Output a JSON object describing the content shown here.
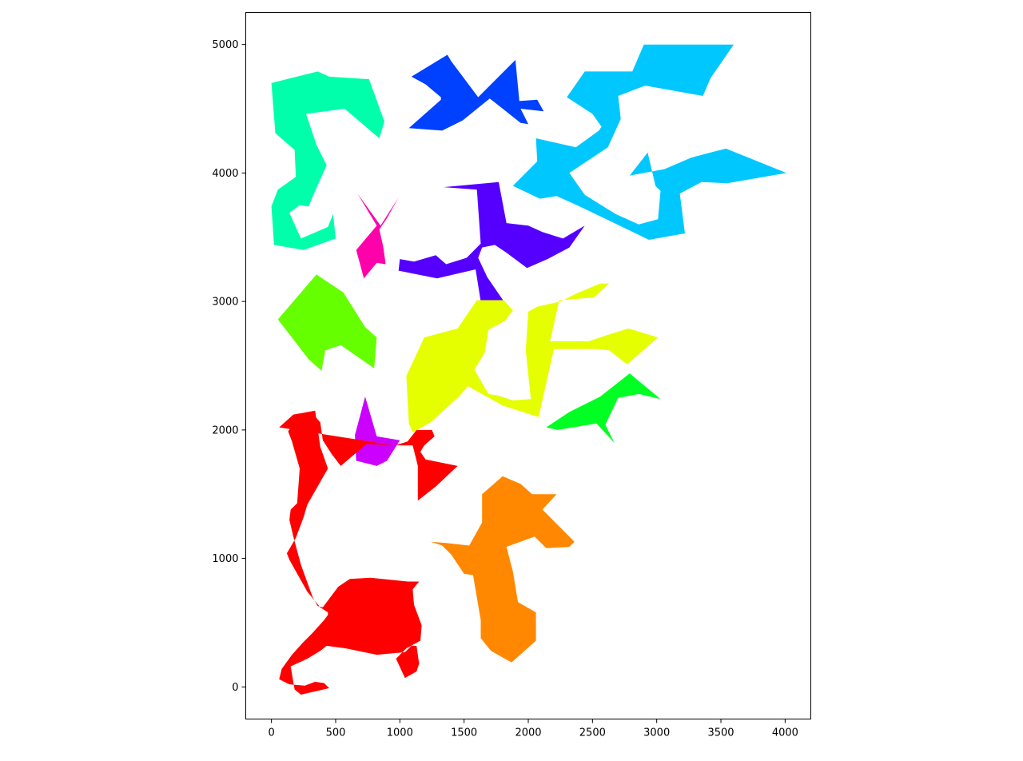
{
  "chart_data": {
    "type": "area",
    "title": "",
    "xlabel": "",
    "ylabel": "",
    "xlim": [
      -200,
      4200
    ],
    "ylim": [
      -250,
      5250
    ],
    "aspect": "equal",
    "grid": false,
    "legend": "none",
    "x_ticks": [
      0,
      500,
      1000,
      1500,
      2000,
      2500,
      3000,
      3500,
      4000
    ],
    "y_ticks": [
      0,
      1000,
      2000,
      3000,
      4000,
      5000
    ],
    "x_tick_labels": [
      "0",
      "500",
      "1000",
      "1500",
      "2000",
      "2500",
      "3000",
      "3500",
      "4000"
    ],
    "y_tick_labels": [
      "0",
      "1000",
      "2000",
      "3000",
      "4000",
      "5000"
    ],
    "series": [
      {
        "color": "#00FFAA",
        "points": [
          [
            0,
            4700
          ],
          [
            360,
            4790
          ],
          [
            450,
            4750
          ],
          [
            760,
            4730
          ],
          [
            880,
            4400
          ],
          [
            840,
            4270
          ],
          [
            570,
            4500
          ],
          [
            270,
            4460
          ],
          [
            350,
            4220
          ],
          [
            430,
            4060
          ],
          [
            340,
            3860
          ],
          [
            290,
            3740
          ],
          [
            220,
            3750
          ],
          [
            140,
            3690
          ],
          [
            230,
            3490
          ],
          [
            440,
            3580
          ],
          [
            480,
            3680
          ],
          [
            500,
            3490
          ],
          [
            250,
            3400
          ],
          [
            20,
            3440
          ],
          [
            0,
            3740
          ],
          [
            50,
            3870
          ],
          [
            190,
            3970
          ],
          [
            180,
            4180
          ],
          [
            30,
            4310
          ]
        ]
      },
      {
        "color": "#0040FF",
        "points": [
          [
            1090,
            4750
          ],
          [
            1200,
            4690
          ],
          [
            1320,
            4590
          ],
          [
            1320,
            4570
          ],
          [
            1070,
            4350
          ],
          [
            1330,
            4330
          ],
          [
            1490,
            4410
          ],
          [
            1700,
            4580
          ],
          [
            1940,
            4390
          ],
          [
            2000,
            4380
          ],
          [
            1940,
            4500
          ],
          [
            2120,
            4480
          ],
          [
            2070,
            4570
          ],
          [
            1930,
            4560
          ],
          [
            1900,
            4880
          ],
          [
            1610,
            4590
          ],
          [
            1400,
            4870
          ],
          [
            1370,
            4920
          ]
        ]
      },
      {
        "color": "#00C8FF",
        "points": [
          [
            2300,
            4590
          ],
          [
            2440,
            4790
          ],
          [
            2810,
            4790
          ],
          [
            2900,
            5000
          ],
          [
            3600,
            5000
          ],
          [
            3420,
            4740
          ],
          [
            3360,
            4600
          ],
          [
            2910,
            4680
          ],
          [
            2700,
            4600
          ],
          [
            2720,
            4420
          ],
          [
            2620,
            4200
          ],
          [
            2320,
            4000
          ],
          [
            2440,
            3830
          ],
          [
            2680,
            3680
          ],
          [
            2860,
            3600
          ],
          [
            3010,
            3640
          ],
          [
            3030,
            3860
          ],
          [
            2990,
            3900
          ],
          [
            2930,
            4160
          ],
          [
            2790,
            3980
          ],
          [
            3060,
            4030
          ],
          [
            3270,
            4120
          ],
          [
            3420,
            4160
          ],
          [
            3540,
            4190
          ],
          [
            4010,
            4000
          ],
          [
            3550,
            3920
          ],
          [
            3350,
            3930
          ],
          [
            3180,
            3840
          ],
          [
            3220,
            3530
          ],
          [
            2940,
            3480
          ],
          [
            2400,
            3740
          ],
          [
            2220,
            3820
          ],
          [
            2090,
            3800
          ],
          [
            1880,
            3900
          ],
          [
            2070,
            4090
          ],
          [
            2060,
            4270
          ],
          [
            2370,
            4200
          ],
          [
            2550,
            4330
          ],
          [
            2570,
            4360
          ],
          [
            2500,
            4460
          ]
        ]
      },
      {
        "color": "#FF00AA",
        "points": [
          [
            670,
            3840
          ],
          [
            850,
            3590
          ],
          [
            990,
            3810
          ],
          [
            900,
            3650
          ],
          [
            840,
            3560
          ],
          [
            870,
            3430
          ],
          [
            890,
            3290
          ],
          [
            820,
            3300
          ],
          [
            720,
            3180
          ],
          [
            660,
            3400
          ],
          [
            820,
            3590
          ]
        ]
      },
      {
        "color": "#5500FF",
        "points": [
          [
            1340,
            3890
          ],
          [
            1600,
            3870
          ],
          [
            1630,
            3450
          ],
          [
            1520,
            3340
          ],
          [
            1360,
            3290
          ],
          [
            1280,
            3360
          ],
          [
            1110,
            3310
          ],
          [
            1000,
            3330
          ],
          [
            990,
            3240
          ],
          [
            1290,
            3180
          ],
          [
            1590,
            3250
          ],
          [
            1630,
            3000
          ],
          [
            1810,
            3000
          ],
          [
            1680,
            3190
          ],
          [
            1610,
            3340
          ],
          [
            1640,
            3420
          ],
          [
            1740,
            3440
          ],
          [
            1830,
            3380
          ],
          [
            1990,
            3260
          ],
          [
            2150,
            3330
          ],
          [
            2320,
            3420
          ],
          [
            2440,
            3590
          ],
          [
            2270,
            3490
          ],
          [
            2110,
            3540
          ],
          [
            2000,
            3590
          ],
          [
            1830,
            3610
          ],
          [
            1770,
            3930
          ]
        ]
      },
      {
        "color": "#66FF00",
        "points": [
          [
            50,
            2860
          ],
          [
            350,
            3210
          ],
          [
            560,
            3070
          ],
          [
            730,
            2800
          ],
          [
            820,
            2720
          ],
          [
            800,
            2480
          ],
          [
            540,
            2660
          ],
          [
            420,
            2620
          ],
          [
            390,
            2460
          ],
          [
            290,
            2550
          ]
        ]
      },
      {
        "color": "#E6FF00",
        "points": [
          [
            1190,
            2720
          ],
          [
            1450,
            2790
          ],
          [
            1600,
            3010
          ],
          [
            1810,
            3010
          ],
          [
            1880,
            2930
          ],
          [
            1820,
            2850
          ],
          [
            1690,
            2780
          ],
          [
            1660,
            2600
          ],
          [
            1580,
            2470
          ],
          [
            1690,
            2280
          ],
          [
            1760,
            2270
          ],
          [
            1880,
            2230
          ],
          [
            2020,
            2240
          ],
          [
            1980,
            2620
          ],
          [
            2000,
            2920
          ],
          [
            2070,
            2960
          ],
          [
            2250,
            3000
          ],
          [
            2370,
            3060
          ],
          [
            2560,
            3140
          ],
          [
            2630,
            3140
          ],
          [
            2510,
            3030
          ],
          [
            2240,
            3010
          ],
          [
            2170,
            2690
          ],
          [
            2470,
            2690
          ],
          [
            2620,
            2740
          ],
          [
            2780,
            2790
          ],
          [
            3010,
            2720
          ],
          [
            2770,
            2510
          ],
          [
            2630,
            2620
          ],
          [
            2530,
            2630
          ],
          [
            2200,
            2630
          ],
          [
            2080,
            2100
          ],
          [
            1800,
            2190
          ],
          [
            1530,
            2340
          ],
          [
            1460,
            2260
          ],
          [
            1240,
            2060
          ],
          [
            1100,
            1980
          ],
          [
            1070,
            2050
          ],
          [
            1050,
            2420
          ]
        ]
      },
      {
        "color": "#00FF22",
        "points": [
          [
            2140,
            2020
          ],
          [
            2320,
            2140
          ],
          [
            2560,
            2260
          ],
          [
            2790,
            2440
          ],
          [
            3030,
            2240
          ],
          [
            2860,
            2280
          ],
          [
            2700,
            2250
          ],
          [
            2600,
            2040
          ],
          [
            2670,
            1900
          ],
          [
            2530,
            2050
          ],
          [
            2230,
            2000
          ]
        ]
      },
      {
        "color": "#CC00FF",
        "points": [
          [
            730,
            2260
          ],
          [
            820,
            1950
          ],
          [
            1000,
            1920
          ],
          [
            900,
            1760
          ],
          [
            820,
            1720
          ],
          [
            660,
            1760
          ],
          [
            650,
            1960
          ]
        ]
      },
      {
        "color": "#FF0000",
        "points": [
          [
            60,
            2020
          ],
          [
            170,
            2120
          ],
          [
            340,
            2150
          ],
          [
            380,
            1870
          ],
          [
            440,
            1700
          ],
          [
            280,
            1420
          ],
          [
            250,
            1320
          ],
          [
            190,
            1160
          ],
          [
            120,
            1040
          ],
          [
            140,
            990
          ],
          [
            280,
            740
          ],
          [
            380,
            620
          ],
          [
            440,
            580
          ],
          [
            440,
            560
          ],
          [
            410,
            520
          ],
          [
            320,
            420
          ],
          [
            240,
            340
          ],
          [
            160,
            250
          ],
          [
            80,
            140
          ],
          [
            60,
            60
          ],
          [
            140,
            20
          ],
          [
            260,
            10
          ],
          [
            340,
            40
          ],
          [
            410,
            30
          ],
          [
            450,
            -10
          ],
          [
            230,
            -60
          ],
          [
            180,
            -20
          ],
          [
            150,
            160
          ],
          [
            280,
            220
          ],
          [
            380,
            280
          ],
          [
            430,
            320
          ],
          [
            580,
            300
          ],
          [
            820,
            250
          ],
          [
            1040,
            270
          ],
          [
            1090,
            320
          ],
          [
            1130,
            320
          ],
          [
            1150,
            180
          ],
          [
            1130,
            120
          ],
          [
            1040,
            70
          ],
          [
            970,
            220
          ],
          [
            1050,
            300
          ],
          [
            1160,
            360
          ],
          [
            1170,
            480
          ],
          [
            1110,
            640
          ],
          [
            1100,
            760
          ],
          [
            1150,
            820
          ],
          [
            1060,
            820
          ],
          [
            770,
            850
          ],
          [
            610,
            840
          ],
          [
            520,
            780
          ],
          [
            400,
            620
          ],
          [
            360,
            630
          ],
          [
            320,
            700
          ],
          [
            230,
            950
          ],
          [
            170,
            1170
          ],
          [
            140,
            1300
          ],
          [
            150,
            1380
          ],
          [
            200,
            1430
          ],
          [
            220,
            1700
          ],
          [
            160,
            1910
          ],
          [
            130,
            1990
          ],
          [
            240,
            2130
          ],
          [
            310,
            2140
          ],
          [
            380,
            2060
          ],
          [
            400,
            1920
          ],
          [
            470,
            1810
          ],
          [
            540,
            1720
          ],
          [
            740,
            1890
          ],
          [
            1020,
            1880
          ],
          [
            1100,
            1880
          ],
          [
            1140,
            1720
          ],
          [
            1140,
            1450
          ],
          [
            1280,
            1560
          ],
          [
            1450,
            1720
          ],
          [
            1200,
            1770
          ],
          [
            1160,
            1830
          ],
          [
            1190,
            1880
          ],
          [
            1270,
            1950
          ],
          [
            1250,
            2000
          ],
          [
            1130,
            2000
          ],
          [
            1060,
            1910
          ],
          [
            960,
            1880
          ]
        ]
      },
      {
        "color": "#FF8800",
        "points": [
          [
            1240,
            1130
          ],
          [
            1360,
            1120
          ],
          [
            1540,
            1100
          ],
          [
            1640,
            1280
          ],
          [
            1640,
            1500
          ],
          [
            1800,
            1640
          ],
          [
            1940,
            1580
          ],
          [
            2030,
            1500
          ],
          [
            2220,
            1500
          ],
          [
            2110,
            1380
          ],
          [
            2360,
            1130
          ],
          [
            2320,
            1090
          ],
          [
            2140,
            1080
          ],
          [
            2050,
            1170
          ],
          [
            1830,
            1090
          ],
          [
            1880,
            900
          ],
          [
            1920,
            660
          ],
          [
            2060,
            580
          ],
          [
            2060,
            360
          ],
          [
            1870,
            190
          ],
          [
            1710,
            280
          ],
          [
            1630,
            380
          ],
          [
            1630,
            520
          ],
          [
            1570,
            870
          ],
          [
            1500,
            880
          ],
          [
            1400,
            1030
          ],
          [
            1330,
            1100
          ]
        ]
      }
    ]
  }
}
